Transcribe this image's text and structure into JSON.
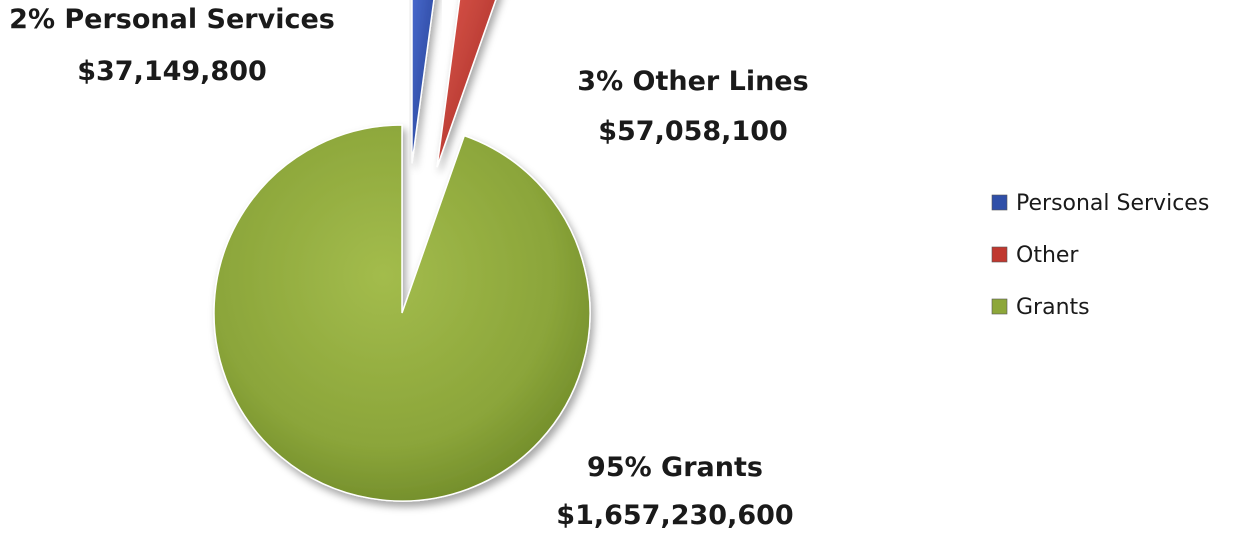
{
  "chart_data": {
    "type": "pie",
    "categories": [
      "Personal Services",
      "Other",
      "Grants"
    ],
    "values": [
      37149800,
      57058100,
      1657230600
    ],
    "percent_labels": [
      "2%",
      "3%",
      "95%"
    ],
    "slice_titles": [
      "Personal Services",
      "Other Lines",
      "Grants"
    ],
    "amount_labels": [
      "$37,149,800",
      "$57,058,100",
      "$1,657,230,600"
    ],
    "colors": [
      "#2f4fa8",
      "#c0382f",
      "#8da73a"
    ],
    "exploded": [
      true,
      true,
      false
    ],
    "legend": {
      "position": "right",
      "entries": [
        "Personal Services",
        "Other",
        "Grants"
      ]
    }
  }
}
